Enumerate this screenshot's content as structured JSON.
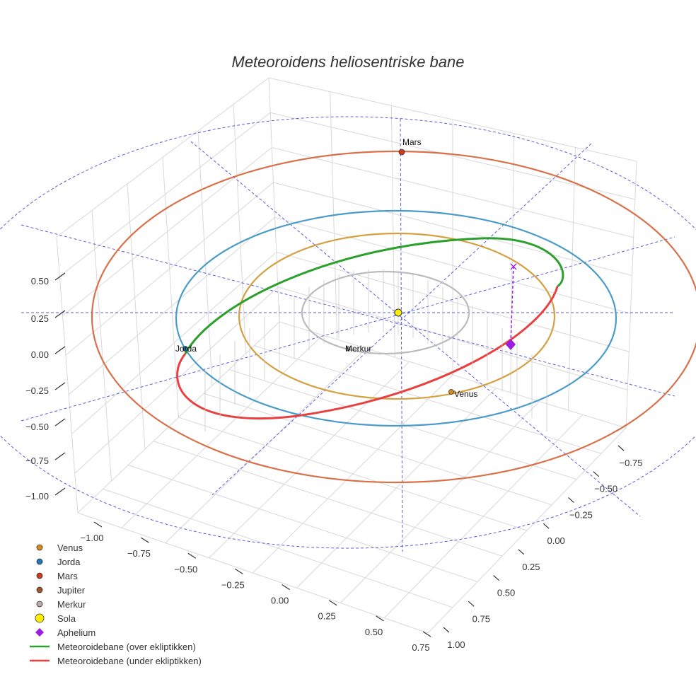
{
  "chart_data": {
    "type": "scatter3d",
    "title": "Meteoroidens heliosentriske bane",
    "axes": {
      "x_ticks": [
        "−1.00",
        "−0.75",
        "−0.50",
        "−0.25",
        "0.00",
        "0.25",
        "0.50",
        "0.75"
      ],
      "y_ticks": [
        "−0.75",
        "−0.50",
        "−0.25",
        "0.00",
        "0.25",
        "0.50",
        "0.75",
        "1.00"
      ],
      "z_ticks": [
        "0.50",
        "0.25",
        "0.00",
        "−0.25",
        "−0.50",
        "−0.75",
        "−1.00"
      ],
      "grid": true
    },
    "orbits": [
      {
        "name": "Merkur",
        "semi_major_au": 0.39,
        "color": "#bbbbbb"
      },
      {
        "name": "Venus",
        "semi_major_au": 0.72,
        "color": "#d4a040"
      },
      {
        "name": "Jorda",
        "semi_major_au": 1.0,
        "color": "#4a9cc8"
      },
      {
        "name": "Mars",
        "semi_major_au": 1.52,
        "color": "#d8704a"
      }
    ],
    "planets": [
      {
        "name": "Venus",
        "label": "Venus",
        "color": "#d98c1c"
      },
      {
        "name": "Jorda",
        "label": "Jorda",
        "color": "#1f77b4"
      },
      {
        "name": "Mars",
        "label": "Mars",
        "color": "#d03a1a"
      },
      {
        "name": "Merkur",
        "label": "Merkur",
        "color": "#999999"
      }
    ],
    "meteoroid_orbit": {
      "above_name": "Meteoroidebane (over ekliptikken)",
      "below_name": "Meteoroidebane (under ekliptikken)",
      "above_color": "#2ca02c",
      "below_color": "#e84040"
    },
    "aphelium_color": "#9b1ce0",
    "sun_color": "#ffee00",
    "legend": {
      "position": "bottom-left",
      "items": [
        {
          "label": "Venus",
          "marker": "circle",
          "color": "#d98c1c"
        },
        {
          "label": "Jorda",
          "marker": "circle",
          "color": "#1f77b4"
        },
        {
          "label": "Mars",
          "marker": "circle",
          "color": "#d03a1a"
        },
        {
          "label": "Jupiter",
          "marker": "circle",
          "color": "#a0522d"
        },
        {
          "label": "Merkur",
          "marker": "circle",
          "color": "#bbaaaa"
        },
        {
          "label": "Sola",
          "marker": "circle-large",
          "color": "#ffee00"
        },
        {
          "label": "Aphelium",
          "marker": "diamond",
          "color": "#9b1ce0"
        },
        {
          "label": "Meteoroidebane (over ekliptikken)",
          "marker": "line",
          "color": "#2ca02c"
        },
        {
          "label": "Meteoroidebane (under ekliptikken)",
          "marker": "line",
          "color": "#e84040"
        }
      ]
    }
  }
}
